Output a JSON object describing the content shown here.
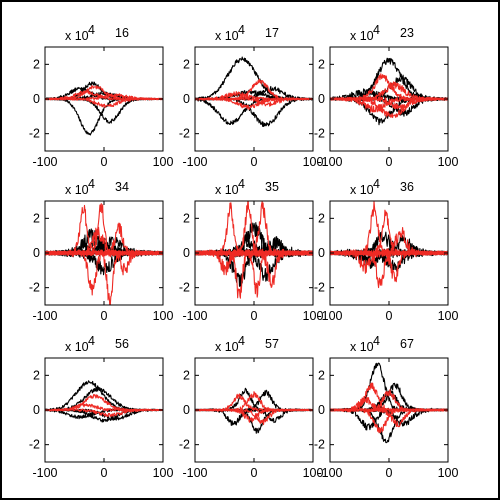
{
  "colors": {
    "series_a": "#000000",
    "series_b": "#ee2a24",
    "axes": "#000000"
  },
  "chart_data": [
    {
      "type": "line",
      "title": "16",
      "scale_label": "x 10",
      "scale_exponent": "4",
      "xlim": [
        -100,
        100
      ],
      "ylim": [
        -3,
        3
      ],
      "xticks": [
        "-100",
        "0",
        "100"
      ],
      "yticks": [
        "2",
        "0",
        "-2"
      ],
      "series": [
        {
          "color": "#000000",
          "peaks": [
            [
              -25,
              -2.0,
              16
            ],
            [
              -20,
              0.9,
              15
            ],
            [
              10,
              -1.3,
              16
            ],
            [
              -40,
              0.6,
              18
            ],
            [
              0,
              0.3,
              22
            ]
          ]
        },
        {
          "color": "#ee2a24",
          "peaks": [
            [
              -15,
              0.7,
              16
            ],
            [
              5,
              -0.4,
              18
            ],
            [
              -30,
              0.4,
              18
            ],
            [
              20,
              0.2,
              20
            ]
          ]
        }
      ],
      "noise": 0.08
    },
    {
      "type": "line",
      "title": "17",
      "scale_label": "x 10",
      "scale_exponent": "4",
      "xlim": [
        -100,
        100
      ],
      "ylim": [
        -3,
        3
      ],
      "xticks": [
        "-100",
        "0",
        "100"
      ],
      "yticks": [
        "2",
        "0",
        "-2"
      ],
      "series": [
        {
          "color": "#000000",
          "peaks": [
            [
              -20,
              2.3,
              24
            ],
            [
              -40,
              -1.4,
              20
            ],
            [
              20,
              -1.5,
              20
            ],
            [
              30,
              0.6,
              18
            ],
            [
              -5,
              0.4,
              22
            ]
          ]
        },
        {
          "color": "#ee2a24",
          "peaks": [
            [
              10,
              1.0,
              14
            ],
            [
              -10,
              -0.5,
              16
            ],
            [
              25,
              -0.3,
              14
            ],
            [
              -30,
              0.3,
              16
            ]
          ]
        }
      ],
      "noise": 0.1
    },
    {
      "type": "line",
      "title": "23",
      "scale_label": "x 10",
      "scale_exponent": "4",
      "xlim": [
        -100,
        100
      ],
      "ylim": [
        -3,
        3
      ],
      "xticks": [
        "-100",
        "0",
        "100"
      ],
      "yticks": [
        "2",
        "0",
        "-2"
      ],
      "series": [
        {
          "color": "#000000",
          "peaks": [
            [
              0,
              2.2,
              20
            ],
            [
              -15,
              -1.3,
              18
            ],
            [
              25,
              -0.8,
              16
            ],
            [
              20,
              1.2,
              18
            ],
            [
              -40,
              0.4,
              20
            ]
          ]
        },
        {
          "color": "#ee2a24",
          "peaks": [
            [
              -10,
              1.3,
              14
            ],
            [
              10,
              0.8,
              16
            ],
            [
              -25,
              -0.6,
              16
            ],
            [
              20,
              -0.5,
              14
            ],
            [
              5,
              -1.0,
              18
            ]
          ]
        }
      ],
      "noise": 0.15
    },
    {
      "type": "line",
      "title": "34",
      "scale_label": "x 10",
      "scale_exponent": "4",
      "xlim": [
        -100,
        100
      ],
      "ylim": [
        -3,
        3
      ],
      "xticks": [
        "-100",
        "0",
        "100"
      ],
      "yticks": [
        "2",
        "0",
        "-2"
      ],
      "series": [
        {
          "color": "#000000",
          "peaks": [
            [
              -20,
              1.0,
              14
            ],
            [
              0,
              -0.9,
              14
            ],
            [
              15,
              0.6,
              14
            ],
            [
              -5,
              0.5,
              16
            ]
          ]
        },
        {
          "color": "#ee2a24",
          "peaks": [
            [
              -35,
              2.5,
              6
            ],
            [
              -20,
              -2.2,
              6
            ],
            [
              -5,
              2.8,
              5
            ],
            [
              10,
              -2.8,
              5
            ],
            [
              25,
              1.5,
              6
            ],
            [
              35,
              -1.0,
              6
            ],
            [
              -10,
              1.2,
              8
            ]
          ]
        }
      ],
      "noise": 0.3
    },
    {
      "type": "line",
      "title": "35",
      "scale_label": "x 10",
      "scale_exponent": "4",
      "xlim": [
        -100,
        100
      ],
      "ylim": [
        -3,
        3
      ],
      "xticks": [
        "-100",
        "0",
        "100"
      ],
      "yticks": [
        "2",
        "0",
        "-2"
      ],
      "series": [
        {
          "color": "#000000",
          "peaks": [
            [
              -25,
              -1.6,
              10
            ],
            [
              0,
              1.4,
              12
            ],
            [
              20,
              -1.3,
              12
            ],
            [
              -10,
              0.8,
              10
            ],
            [
              35,
              0.5,
              12
            ]
          ]
        },
        {
          "color": "#ee2a24",
          "peaks": [
            [
              -40,
              2.8,
              5
            ],
            [
              -25,
              -2.5,
              5
            ],
            [
              -10,
              2.8,
              5
            ],
            [
              5,
              -2.2,
              5
            ],
            [
              15,
              2.6,
              6
            ],
            [
              30,
              -1.8,
              6
            ],
            [
              -50,
              -1.0,
              6
            ]
          ]
        }
      ],
      "noise": 0.35
    },
    {
      "type": "line",
      "title": "36",
      "scale_label": "x 10",
      "scale_exponent": "4",
      "xlim": [
        -100,
        100
      ],
      "ylim": [
        -3,
        3
      ],
      "xticks": [
        "-100",
        "0",
        "100"
      ],
      "yticks": [
        "2",
        "0",
        "-2"
      ],
      "series": [
        {
          "color": "#000000",
          "peaks": [
            [
              -10,
              0.9,
              12
            ],
            [
              10,
              -0.8,
              12
            ],
            [
              25,
              0.6,
              12
            ],
            [
              -30,
              -0.5,
              14
            ]
          ]
        },
        {
          "color": "#ee2a24",
          "peaks": [
            [
              -25,
              2.6,
              6
            ],
            [
              -15,
              -1.8,
              6
            ],
            [
              -5,
              2.2,
              6
            ],
            [
              10,
              -1.5,
              6
            ],
            [
              20,
              1.2,
              8
            ],
            [
              -40,
              -0.8,
              8
            ]
          ]
        }
      ],
      "noise": 0.3
    },
    {
      "type": "line",
      "title": "56",
      "scale_label": "x 10",
      "scale_exponent": "4",
      "xlim": [
        -100,
        100
      ],
      "ylim": [
        -3,
        3
      ],
      "xticks": [
        "-100",
        "0",
        "100"
      ],
      "yticks": [
        "2",
        "0",
        "-2"
      ],
      "series": [
        {
          "color": "#000000",
          "peaks": [
            [
              -25,
              1.6,
              22
            ],
            [
              -10,
              1.2,
              22
            ],
            [
              0,
              -0.6,
              20
            ],
            [
              -40,
              -0.4,
              20
            ],
            [
              20,
              -0.5,
              20
            ]
          ]
        },
        {
          "color": "#ee2a24",
          "peaks": [
            [
              -15,
              0.8,
              18
            ],
            [
              10,
              -0.3,
              18
            ],
            [
              -30,
              0.3,
              16
            ]
          ]
        }
      ],
      "noise": 0.08
    },
    {
      "type": "line",
      "title": "57",
      "scale_label": "x 10",
      "scale_exponent": "4",
      "xlim": [
        -100,
        100
      ],
      "ylim": [
        -3,
        3
      ],
      "xticks": [
        "-100",
        "0",
        "100"
      ],
      "yticks": [
        "2",
        "0",
        "-2"
      ],
      "series": [
        {
          "color": "#000000",
          "peaks": [
            [
              -15,
              1.1,
              10
            ],
            [
              5,
              -1.2,
              10
            ],
            [
              20,
              1.0,
              10
            ],
            [
              -35,
              -0.8,
              10
            ],
            [
              35,
              -0.6,
              10
            ]
          ]
        },
        {
          "color": "#ee2a24",
          "peaks": [
            [
              -25,
              0.8,
              10
            ],
            [
              0,
              0.9,
              10
            ],
            [
              15,
              -0.7,
              10
            ],
            [
              -5,
              -0.6,
              10
            ]
          ]
        }
      ],
      "noise": 0.12
    },
    {
      "type": "line",
      "title": "67",
      "scale_label": "x 10",
      "scale_exponent": "4",
      "xlim": [
        -100,
        100
      ],
      "ylim": [
        -3,
        3
      ],
      "xticks": [
        "-100",
        "0",
        "100"
      ],
      "yticks": [
        "2",
        "0",
        "-2"
      ],
      "series": [
        {
          "color": "#000000",
          "peaks": [
            [
              -20,
              2.6,
              12
            ],
            [
              -5,
              -1.8,
              12
            ],
            [
              10,
              1.4,
              12
            ],
            [
              -35,
              -1.0,
              12
            ],
            [
              25,
              -0.8,
              14
            ],
            [
              0,
              1.0,
              12
            ]
          ]
        },
        {
          "color": "#ee2a24",
          "peaks": [
            [
              -30,
              1.4,
              10
            ],
            [
              -15,
              -1.2,
              10
            ],
            [
              0,
              1.0,
              10
            ],
            [
              15,
              -0.8,
              10
            ],
            [
              -40,
              0.6,
              10
            ]
          ]
        }
      ],
      "noise": 0.15
    }
  ]
}
